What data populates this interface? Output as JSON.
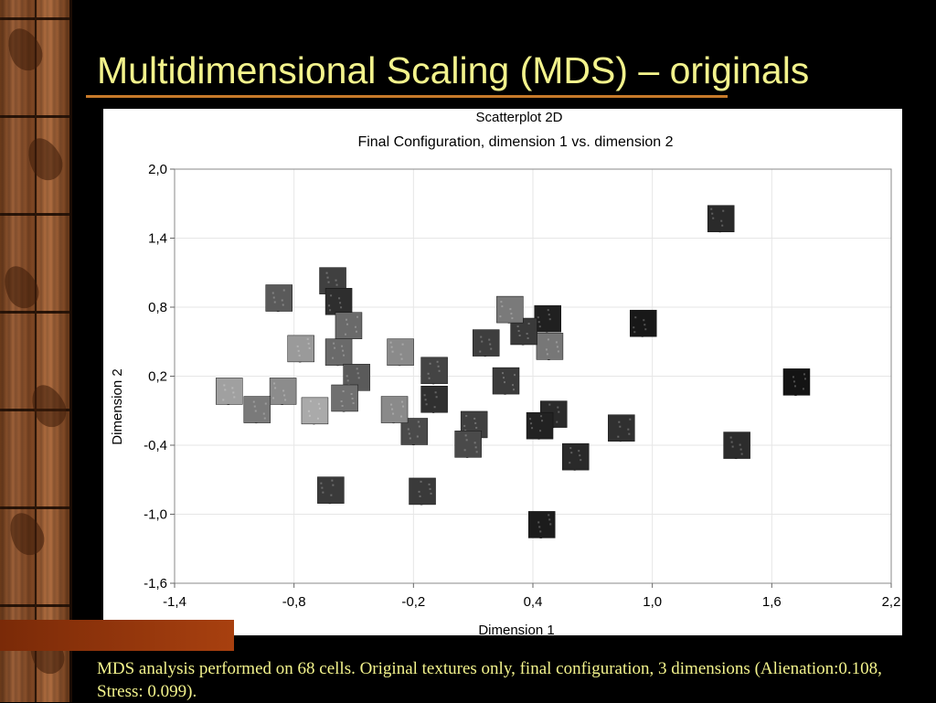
{
  "slide": {
    "title": "Multidimensional Scaling (MDS) – originals",
    "caption": "MDS analysis performed on 68 cells. Original textures only, final configuration, 3 dimensions (Alienation:0.108, Stress: 0.099)."
  },
  "colors": {
    "background": "#000000",
    "title_text": "#f3f38c",
    "title_rule": "#c87a2a",
    "accent_bar": "#a8400f",
    "sidebar_wood": "#8a4d28"
  },
  "chart_data": {
    "type": "scatter",
    "title": "Scatterplot 2D",
    "subtitle": "Final Configuration, dimension 1 vs. dimension 2",
    "xlabel": "Dimension 1",
    "ylabel": "Dimension 2",
    "xlim": [
      -1.4,
      2.2
    ],
    "ylim": [
      -1.6,
      2.0
    ],
    "xticks": [
      "-1,4",
      "-0,8",
      "-0,2",
      "0,4",
      "1,0",
      "1,6",
      "2,2"
    ],
    "yticks": [
      "2,0",
      "1,4",
      "0,8",
      "0,2",
      "-0,4",
      "-1,0",
      "-1,6"
    ],
    "grid": true,
    "marker": "texture thumbnail",
    "points": [
      {
        "x": 1.34,
        "y": 1.47,
        "shade": "#2a2a2a"
      },
      {
        "x": 1.72,
        "y": 0.05,
        "shade": "#141414"
      },
      {
        "x": 1.42,
        "y": -0.5,
        "shade": "#2c2c2c"
      },
      {
        "x": 0.95,
        "y": 0.56,
        "shade": "#181818"
      },
      {
        "x": 0.84,
        "y": -0.35,
        "shade": "#303030"
      },
      {
        "x": 0.61,
        "y": -0.6,
        "shade": "#2a2a2a"
      },
      {
        "x": 0.47,
        "y": 0.6,
        "shade": "#202020"
      },
      {
        "x": 0.48,
        "y": 0.36,
        "shade": "#777777"
      },
      {
        "x": 0.5,
        "y": -0.23,
        "shade": "#2a2a2a"
      },
      {
        "x": 0.43,
        "y": -0.33,
        "shade": "#222222"
      },
      {
        "x": 0.44,
        "y": -1.19,
        "shade": "#1c1c1c"
      },
      {
        "x": 0.35,
        "y": 0.49,
        "shade": "#3a3a3a"
      },
      {
        "x": 0.28,
        "y": 0.68,
        "shade": "#7a7a7a"
      },
      {
        "x": 0.26,
        "y": 0.06,
        "shade": "#3c3c3c"
      },
      {
        "x": 0.16,
        "y": 0.39,
        "shade": "#3e3e3e"
      },
      {
        "x": 0.1,
        "y": -0.32,
        "shade": "#404040"
      },
      {
        "x": 0.07,
        "y": -0.49,
        "shade": "#4a4a4a"
      },
      {
        "x": -0.1,
        "y": 0.15,
        "shade": "#444444"
      },
      {
        "x": -0.1,
        "y": -0.1,
        "shade": "#303030"
      },
      {
        "x": -0.16,
        "y": -0.9,
        "shade": "#3a3a3a"
      },
      {
        "x": -0.2,
        "y": -0.38,
        "shade": "#4a4a4a"
      },
      {
        "x": -0.27,
        "y": 0.31,
        "shade": "#8a8a8a"
      },
      {
        "x": -0.3,
        "y": -0.19,
        "shade": "#8a8a8a"
      },
      {
        "x": -0.61,
        "y": 0.93,
        "shade": "#404040"
      },
      {
        "x": -0.58,
        "y": 0.75,
        "shade": "#2e2e2e"
      },
      {
        "x": -0.53,
        "y": 0.54,
        "shade": "#6a6a6a"
      },
      {
        "x": -0.58,
        "y": 0.31,
        "shade": "#6a6a6a"
      },
      {
        "x": -0.49,
        "y": 0.09,
        "shade": "#5a5a5a"
      },
      {
        "x": -0.55,
        "y": -0.09,
        "shade": "#707070"
      },
      {
        "x": -0.7,
        "y": -0.2,
        "shade": "#aaaaaa"
      },
      {
        "x": -0.62,
        "y": -0.89,
        "shade": "#3a3a3a"
      },
      {
        "x": -0.77,
        "y": 0.34,
        "shade": "#9a9a9a"
      },
      {
        "x": -0.88,
        "y": 0.78,
        "shade": "#5a5a5a"
      },
      {
        "x": -0.86,
        "y": -0.03,
        "shade": "#8c8c8c"
      },
      {
        "x": -0.99,
        "y": -0.19,
        "shade": "#7a7a7a"
      },
      {
        "x": -1.13,
        "y": -0.03,
        "shade": "#a0a0a0"
      }
    ]
  }
}
